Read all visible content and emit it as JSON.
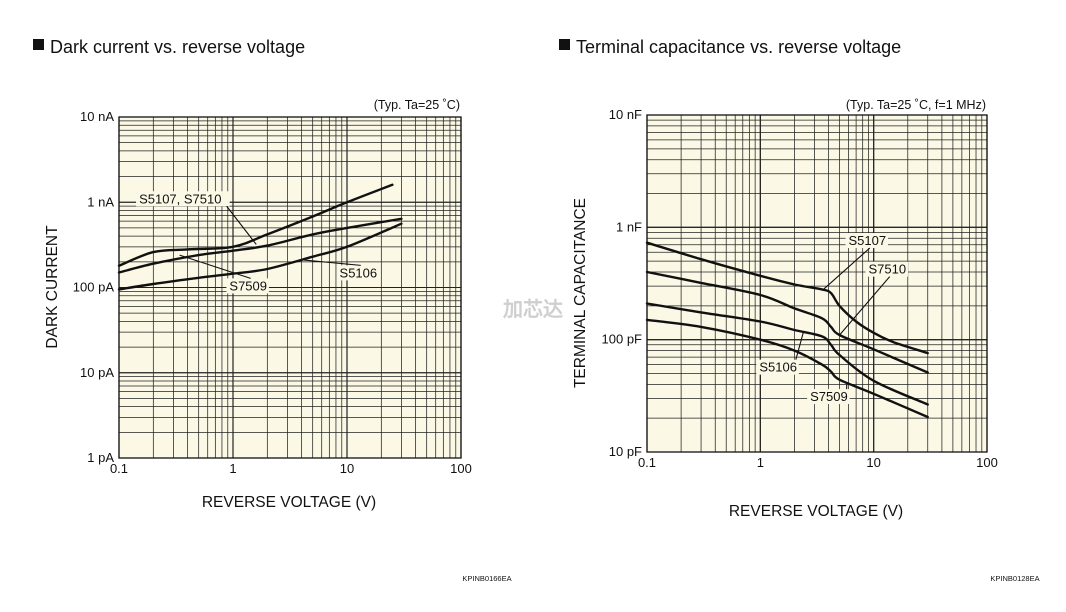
{
  "watermark": "加芯达",
  "chart_data": [
    {
      "type": "line",
      "title": "Dark current vs. reverse voltage",
      "condition": "(Typ. Ta=25 ˚C)",
      "xlabel": "REVERSE VOLTAGE (V)",
      "ylabel": "DARK CURRENT",
      "xscale": "log",
      "yscale": "log",
      "xlim": [
        0.1,
        100
      ],
      "ylim": [
        1e-12,
        1e-08
      ],
      "xticks": [
        0.1,
        1,
        10,
        100
      ],
      "xtick_labels": [
        "0.1",
        "1",
        "10",
        "100"
      ],
      "yticks": [
        1e-08,
        1e-09,
        1e-10,
        1e-11,
        1e-12
      ],
      "ytick_labels": [
        "10 nA",
        "1 nA",
        "100 pA",
        "10 pA",
        "1 pA"
      ],
      "grid": true,
      "background": "#fbf8e6",
      "figure_code": "KPINB0166EA",
      "series": [
        {
          "x": [
            0.1,
            0.2,
            0.4,
            1,
            2,
            5,
            10,
            25
          ],
          "y": [
            1.8e-10,
            2.6e-10,
            2.8e-10,
            3e-10,
            4.2e-10,
            6.8e-10,
            1e-09,
            1.6e-09
          ]
        },
        {
          "x": [
            0.1,
            0.2,
            0.5,
            1,
            2,
            5,
            10,
            30
          ],
          "y": [
            1.5e-10,
            1.9e-10,
            2.4e-10,
            2.7e-10,
            3.1e-10,
            4.2e-10,
            5e-10,
            6.4e-10
          ]
        },
        {
          "x": [
            0.1,
            0.2,
            0.5,
            1,
            2,
            5,
            10,
            30
          ],
          "y": [
            9.5e-11,
            1.1e-10,
            1.3e-10,
            1.45e-10,
            1.65e-10,
            2.3e-10,
            3e-10,
            5.6e-10
          ]
        }
      ],
      "annotations": [
        {
          "text": "S5107, S7510",
          "at": [
            0.15,
            1e-09
          ],
          "to": [
            1.6,
            3.2e-10
          ]
        },
        {
          "text": "S7509",
          "at": [
            0.93,
            9.5e-11
          ],
          "to": [
            0.34,
            2.4e-10
          ]
        },
        {
          "text": "S5106",
          "at": [
            8.6,
            1.35e-10
          ],
          "to": [
            4.2,
            2.1e-10
          ]
        }
      ]
    },
    {
      "type": "line",
      "title": "Terminal capacitance vs. reverse voltage",
      "condition": "(Typ. Ta=25 ˚C, f=1 MHz)",
      "xlabel": "REVERSE VOLTAGE (V)",
      "ylabel": "TERMINAL CAPACITANCE",
      "xscale": "log",
      "yscale": "log",
      "xlim": [
        0.1,
        100
      ],
      "ylim": [
        1e-11,
        1e-08
      ],
      "xticks": [
        0.1,
        1,
        10,
        100
      ],
      "xtick_labels": [
        "0.1",
        "1",
        "10",
        "100"
      ],
      "yticks": [
        1e-08,
        1e-09,
        1e-10,
        1e-11
      ],
      "ytick_labels": [
        "10 nF",
        "1 nF",
        "100 pF",
        "10 pF"
      ],
      "grid": true,
      "background": "#fbf8e6",
      "figure_code": "KPINB0128EA",
      "series": [
        {
          "x": [
            0.1,
            0.3,
            1,
            2,
            3.5,
            4.2,
            5,
            7,
            10,
            15,
            30
          ],
          "y": [
            7.3e-10,
            5.2e-10,
            3.7e-10,
            3.1e-10,
            2.8e-10,
            2.6e-10,
            2e-10,
            1.45e-10,
            1.15e-10,
            9.5e-11,
            7.6e-11
          ]
        },
        {
          "x": [
            0.1,
            0.3,
            1,
            2,
            3.5,
            4.2,
            5,
            10,
            30
          ],
          "y": [
            4e-10,
            3.2e-10,
            2.5e-10,
            1.9e-10,
            1.55e-10,
            1.3e-10,
            1.1e-10,
            8.2e-11,
            5.1e-11
          ]
        },
        {
          "x": [
            0.1,
            0.3,
            1,
            2,
            3.5,
            4.2,
            5,
            10,
            30
          ],
          "y": [
            2.1e-10,
            1.75e-10,
            1.45e-10,
            1.22e-10,
            1.07e-10,
            9e-11,
            7.3e-11,
            4.3e-11,
            2.65e-11
          ]
        },
        {
          "x": [
            0.1,
            0.3,
            1,
            2,
            3.5,
            4.2,
            5,
            10,
            30
          ],
          "y": [
            1.5e-10,
            1.3e-10,
            1e-10,
            8e-11,
            6e-11,
            5.2e-11,
            4.4e-11,
            3.3e-11,
            2.05e-11
          ]
        }
      ],
      "annotations": [
        {
          "text": "S5107",
          "at": [
            6.0,
            7.1e-10
          ],
          "to": [
            3.6,
            2.8e-10
          ]
        },
        {
          "text": "S7510",
          "at": [
            9.0,
            3.95e-10
          ],
          "to": [
            5.0,
            1.1e-10
          ]
        },
        {
          "text": "S5106",
          "at": [
            0.98,
            5.3e-11
          ],
          "to": [
            2.4,
            1.17e-10
          ]
        },
        {
          "text": "S7509",
          "at": [
            2.75,
            2.9e-11
          ],
          "to": [
            5.8,
            4.2e-11
          ]
        }
      ]
    }
  ]
}
